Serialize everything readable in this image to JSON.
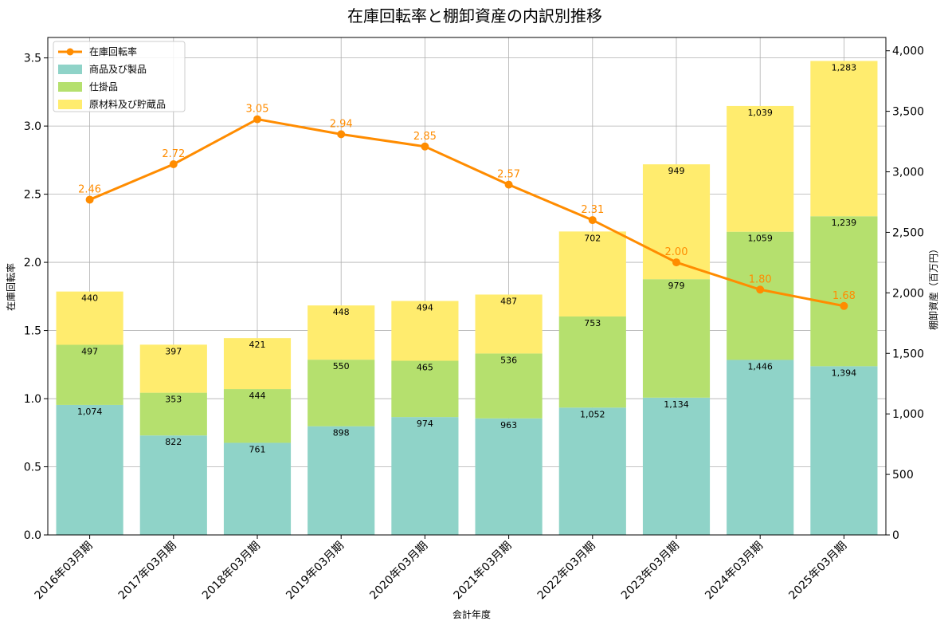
{
  "chart_data": {
    "type": "bar",
    "title": "在庫回転率と棚卸資産の内訳別推移",
    "xlabel": "会計年度",
    "ylabel_left": "在庫回転率",
    "ylabel_right": "棚卸資産（百万円）",
    "categories": [
      "2016年03月期",
      "2017年03月期",
      "2018年03月期",
      "2019年03月期",
      "2020年03月期",
      "2021年03月期",
      "2022年03月期",
      "2023年03月期",
      "2024年03月期",
      "2025年03月期"
    ],
    "stacked": true,
    "grid": true,
    "legend_position": "top-left",
    "ylim_left": [
      0,
      3.65
    ],
    "ylim_right": [
      0,
      4110
    ],
    "yticks_left": [
      "0.0",
      "0.5",
      "1.0",
      "1.5",
      "2.0",
      "2.5",
      "3.0",
      "3.5"
    ],
    "yticks_right": [
      "0",
      "500",
      "1,000",
      "1,500",
      "2,000",
      "2,500",
      "3,000",
      "3,500",
      "4,000"
    ],
    "series": [
      {
        "name": "商品及び製品",
        "color": "#8fd3c8",
        "axis": "right",
        "values": [
          1074,
          822,
          761,
          898,
          974,
          963,
          1052,
          1134,
          1446,
          1394
        ],
        "labels": [
          "1,074",
          "822",
          "761",
          "898",
          "974",
          "963",
          "1,052",
          "1,134",
          "1,446",
          "1,394"
        ]
      },
      {
        "name": "仕掛品",
        "color": "#b5e06e",
        "axis": "right",
        "values": [
          497,
          353,
          444,
          550,
          465,
          536,
          753,
          979,
          1059,
          1239
        ],
        "labels": [
          "497",
          "353",
          "444",
          "550",
          "465",
          "536",
          "753",
          "979",
          "1,059",
          "1,239"
        ]
      },
      {
        "name": "原材料及び貯蔵品",
        "color": "#ffec6e",
        "axis": "right",
        "values": [
          440,
          397,
          421,
          448,
          494,
          487,
          702,
          949,
          1039,
          1283
        ],
        "labels": [
          "440",
          "397",
          "421",
          "448",
          "494",
          "487",
          "702",
          "949",
          "1,039",
          "1,283"
        ]
      }
    ],
    "line": {
      "name": "在庫回転率",
      "color": "#ff8c00",
      "axis": "left",
      "values": [
        2.46,
        2.72,
        3.05,
        2.94,
        2.85,
        2.57,
        2.31,
        2.0,
        1.8,
        1.68
      ],
      "labels": [
        "2.46",
        "2.72",
        "3.05",
        "2.94",
        "2.85",
        "2.57",
        "2.31",
        "2.00",
        "1.80",
        "1.68"
      ]
    }
  }
}
